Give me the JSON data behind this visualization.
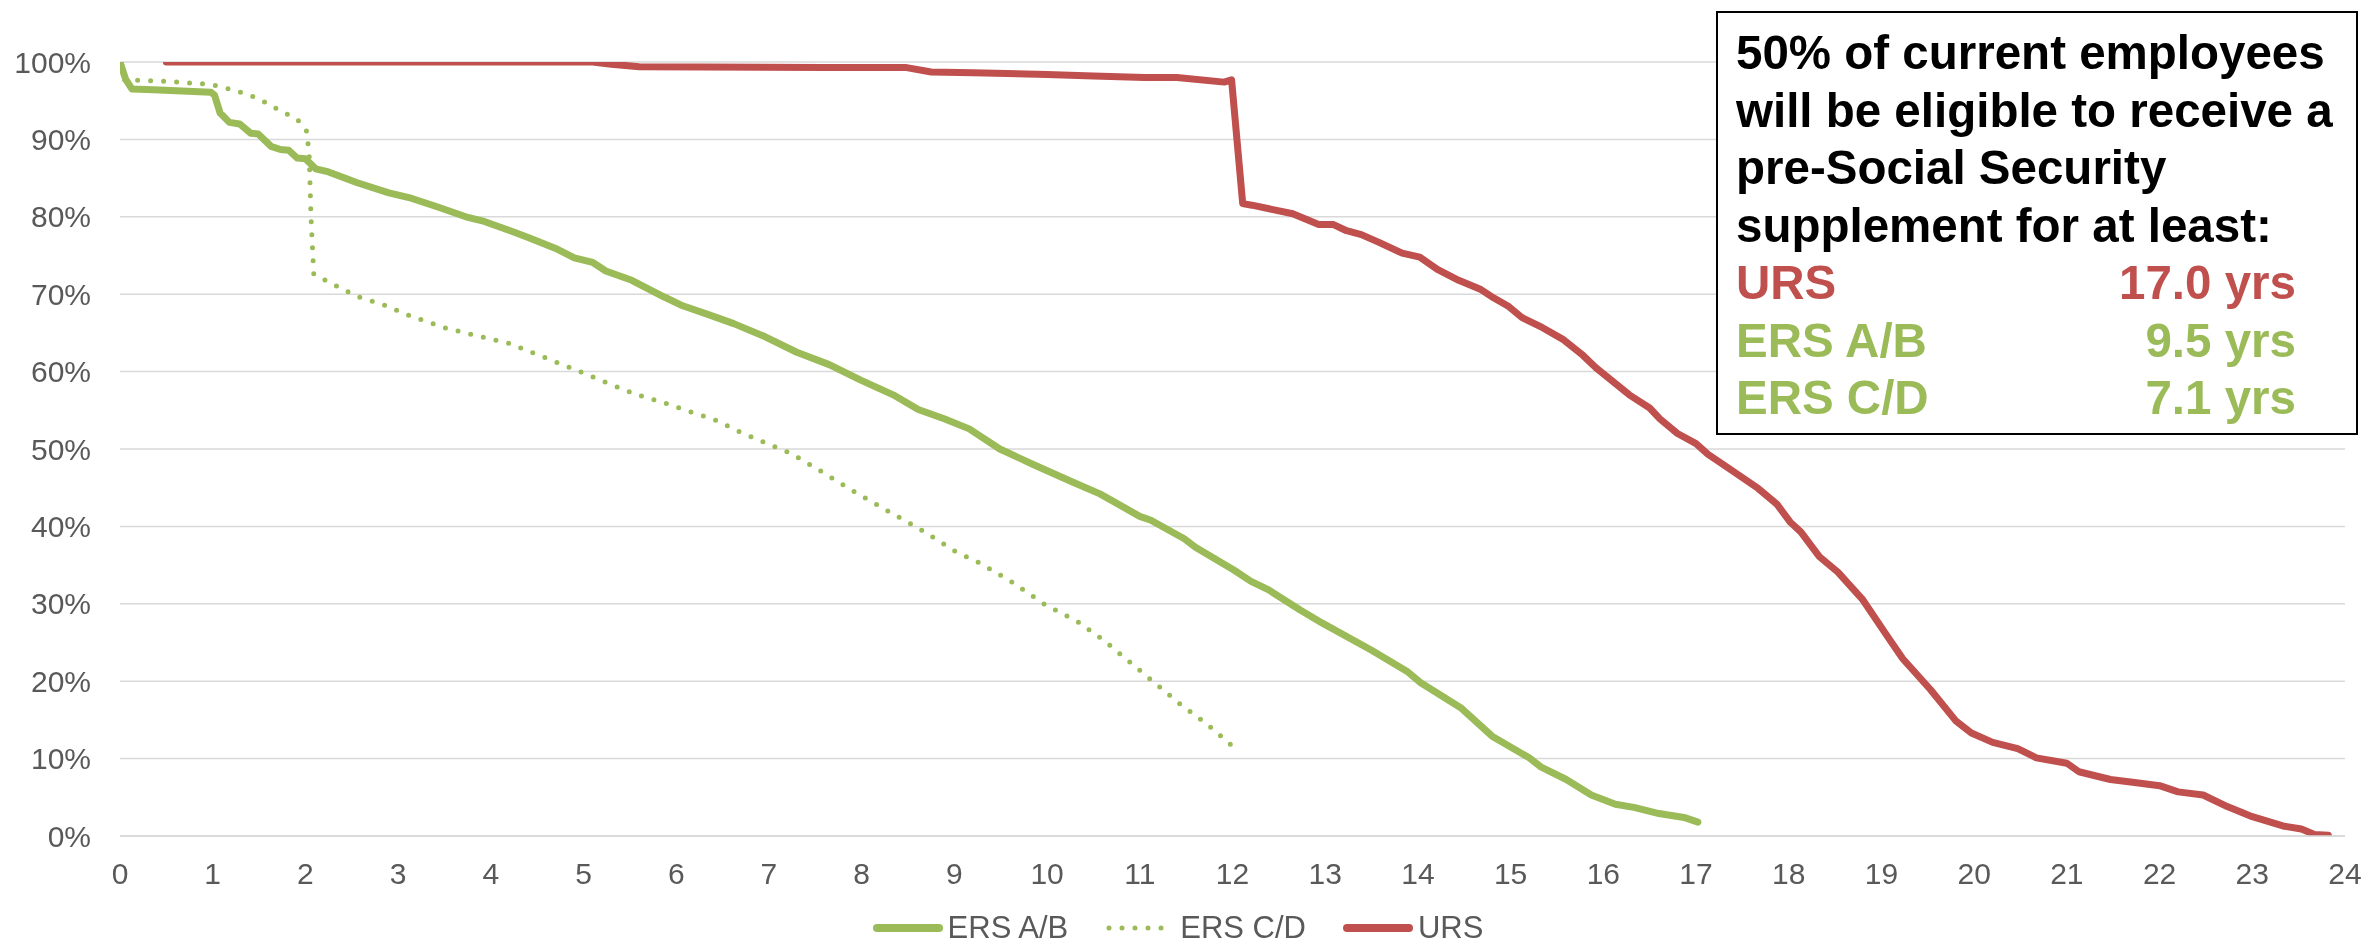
{
  "chart_data": {
    "type": "line",
    "annotations": [
      "50% of current employees will be eligible to receive a pre-Social Security supplement for at least:",
      "URS",
      "17.0 yrs",
      "ERS A/B",
      "9.5 yrs",
      "ERS C/D",
      "7.1 yrs"
    ],
    "xlim": [
      0,
      24
    ],
    "xticks": [
      0,
      1,
      2,
      3,
      4,
      5,
      6,
      7,
      8,
      9,
      10,
      11,
      12,
      13,
      14,
      15,
      16,
      17,
      18,
      19,
      20,
      21,
      22,
      23,
      24
    ],
    "ylim": [
      0,
      100
    ],
    "yticks": [
      {
        "value": 0,
        "label": "0%"
      },
      {
        "value": 10,
        "label": "10%"
      },
      {
        "value": 20,
        "label": "20%"
      },
      {
        "value": 30,
        "label": "30%"
      },
      {
        "value": 40,
        "label": "40%"
      },
      {
        "value": 50,
        "label": "50%"
      },
      {
        "value": 60,
        "label": "60%"
      },
      {
        "value": 70,
        "label": "70%"
      },
      {
        "value": 80,
        "label": "80%"
      },
      {
        "value": 90,
        "label": "90%"
      },
      {
        "value": 100,
        "label": "100%"
      }
    ],
    "grid": "y",
    "legend": "bottom",
    "series": [
      {
        "name": "ERS A/B",
        "color": "#9bbb59",
        "line_style": "solid",
        "x": [
          0,
          0.06,
          0.13,
          0.36,
          0.98,
          1.02,
          1.08,
          1.18,
          1.29,
          1.41,
          1.49,
          1.63,
          1.73,
          1.82,
          1.91,
          2.0,
          2.11,
          2.25,
          2.56,
          2.9,
          3.14,
          3.42,
          3.73,
          3.93,
          4.21,
          4.41,
          4.72,
          4.9,
          5.1,
          5.24,
          5.52,
          5.86,
          6.07,
          6.34,
          6.62,
          6.96,
          7.3,
          7.65,
          7.99,
          8.34,
          8.61,
          8.89,
          9.16,
          9.49,
          9.85,
          10.28,
          10.57,
          11.0,
          11.12,
          11.48,
          11.6,
          12.01,
          12.2,
          12.39,
          12.73,
          12.97,
          13.5,
          13.64,
          13.88,
          14.03,
          14.47,
          14.8,
          15.2,
          15.33,
          15.6,
          15.87,
          16.13,
          16.33,
          16.6,
          16.87,
          17.02
        ],
        "values": [
          100,
          97.8,
          96.5,
          96.4,
          96.1,
          95.7,
          93.4,
          92.2,
          92.0,
          90.8,
          90.7,
          89.1,
          88.7,
          88.6,
          87.6,
          87.5,
          86.2,
          85.8,
          84.4,
          83.1,
          82.4,
          81.3,
          80.0,
          79.4,
          78.2,
          77.3,
          75.8,
          74.7,
          74.1,
          73.0,
          71.8,
          69.7,
          68.5,
          67.4,
          66.2,
          64.5,
          62.5,
          60.9,
          58.9,
          57.0,
          55.1,
          53.9,
          52.6,
          50.0,
          48.0,
          45.7,
          44.2,
          41.3,
          40.8,
          38.4,
          37.3,
          34.4,
          32.9,
          31.8,
          29.2,
          27.5,
          24.0,
          23.0,
          21.3,
          19.8,
          16.5,
          12.9,
          10.1,
          8.9,
          7.3,
          5.3,
          4.1,
          3.7,
          2.9,
          2.4,
          1.8
        ]
      },
      {
        "name": "ERS C/D",
        "color": "#9bbb59",
        "line_style": "dotted",
        "x": [
          0.05,
          0.5,
          0.98,
          1.25,
          1.49,
          1.73,
          1.91,
          2.01,
          2.04,
          2.06,
          2.09,
          2.28,
          2.56,
          2.83,
          3.11,
          3.52,
          3.93,
          4.21,
          4.48,
          4.9,
          5.24,
          5.58,
          5.86,
          6.13,
          6.41,
          6.69,
          6.96,
          7.24,
          7.51,
          7.92,
          8.34,
          8.61,
          9.02,
          9.27,
          9.61,
          9.99,
          10.33,
          10.62,
          10.91,
          11.17,
          11.43,
          11.72,
          12.0
        ],
        "values": [
          97.7,
          97.5,
          97.1,
          96.3,
          95.3,
          93.7,
          92.6,
          91.2,
          88.3,
          80.0,
          72.6,
          71.4,
          69.7,
          68.7,
          67.3,
          65.6,
          64.4,
          63.6,
          62.3,
          60.3,
          58.6,
          57.0,
          56.0,
          54.9,
          53.8,
          52.2,
          50.8,
          49.4,
          47.5,
          44.5,
          41.6,
          39.8,
          36.7,
          35.3,
          32.9,
          29.8,
          27.7,
          25.2,
          22.3,
          19.7,
          17.1,
          14.5,
          11.6
        ]
      },
      {
        "name": "URS",
        "color": "#c0504d",
        "line_style": "solid",
        "x": [
          0.5,
          5.1,
          5.3,
          5.6,
          7.6,
          8.47,
          8.75,
          9.2,
          10.0,
          10.5,
          11.05,
          11.4,
          11.91,
          11.99,
          12.11,
          12.21,
          12.65,
          12.93,
          13.09,
          13.23,
          13.39,
          13.58,
          13.83,
          14.02,
          14.21,
          14.44,
          14.68,
          14.82,
          14.98,
          15.12,
          15.34,
          15.56,
          15.78,
          15.92,
          16.28,
          16.5,
          16.61,
          16.8,
          17.0,
          17.13,
          17.33,
          17.67,
          17.87,
          18.02,
          18.13,
          18.33,
          18.53,
          18.8,
          19.07,
          19.23,
          19.53,
          19.8,
          19.97,
          20.2,
          20.47,
          20.67,
          21.0,
          21.13,
          21.47,
          21.73,
          22.0,
          22.2,
          22.47,
          22.73,
          23.0,
          23.33,
          23.53,
          23.67,
          23.82
        ],
        "values": [
          100,
          100,
          99.7,
          99.4,
          99.3,
          99.3,
          98.7,
          98.6,
          98.4,
          98.2,
          98.0,
          98.0,
          97.4,
          97.7,
          81.7,
          81.5,
          80.4,
          79.0,
          79.0,
          78.2,
          77.7,
          76.7,
          75.3,
          74.8,
          73.2,
          71.8,
          70.6,
          69.5,
          68.4,
          67.0,
          65.7,
          64.2,
          62.1,
          60.5,
          57.0,
          55.3,
          53.9,
          52.0,
          50.7,
          49.3,
          47.7,
          44.9,
          42.9,
          40.5,
          39.3,
          36.1,
          34.1,
          30.5,
          25.7,
          22.9,
          18.9,
          14.9,
          13.3,
          12.1,
          11.3,
          10.1,
          9.4,
          8.3,
          7.3,
          6.9,
          6.5,
          5.7,
          5.3,
          3.8,
          2.5,
          1.3,
          0.9,
          0.2,
          0.1
        ]
      }
    ]
  }
}
